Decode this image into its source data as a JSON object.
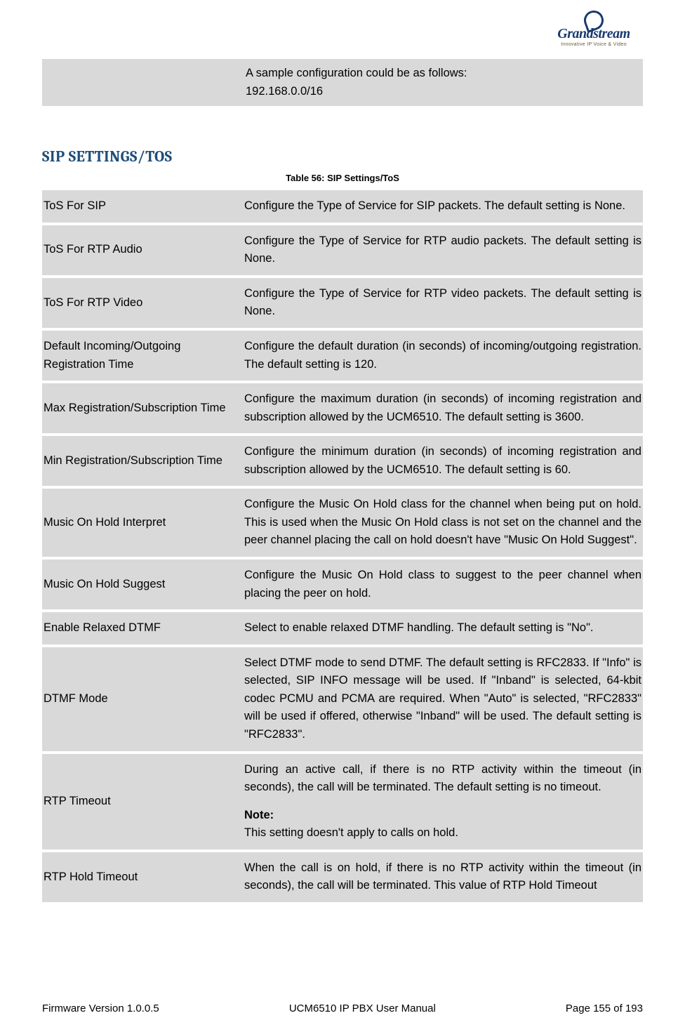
{
  "logo": {
    "brand": "Grandstream",
    "tagline": "Innovative IP Voice & Video"
  },
  "prelude": {
    "line1": "A sample configuration could be as follows:",
    "line2": "192.168.0.0/16"
  },
  "section_heading": "SIP SETTINGS/TOS",
  "table_caption": "Table 56: SIP Settings/ToS",
  "rows": [
    {
      "label": "ToS For SIP",
      "desc": "Configure the Type of Service for SIP packets. The default setting is None."
    },
    {
      "label": "ToS For RTP Audio",
      "desc": "Configure the Type of Service for RTP audio packets. The default setting is None."
    },
    {
      "label": "ToS For RTP Video",
      "desc": "Configure the Type of Service for RTP video packets. The default setting is None."
    },
    {
      "label": "Default Incoming/Outgoing Registration Time",
      "desc": "Configure the default duration (in seconds) of incoming/outgoing registration. The default setting is 120."
    },
    {
      "label": "Max Registration/Subscription Time",
      "desc": "Configure the maximum duration (in seconds) of incoming registration and subscription allowed by the UCM6510. The default setting is 3600."
    },
    {
      "label": "Min Registration/Subscription Time",
      "desc": "Configure the minimum duration (in seconds) of incoming registration and subscription allowed by the UCM6510. The default setting is 60."
    },
    {
      "label": "Music On Hold Interpret",
      "desc": "Configure the Music On Hold class for the channel when being put on hold. This is used when the Music On Hold class is not set on the channel and the peer channel placing the call on hold doesn't have \"Music On Hold Suggest\"."
    },
    {
      "label": "Music On Hold Suggest",
      "desc": "Configure the Music On Hold class to suggest to the peer channel when placing the peer on hold."
    },
    {
      "label": "Enable Relaxed DTMF",
      "desc": "Select to enable relaxed DTMF handling. The default setting is \"No\"."
    },
    {
      "label": "DTMF Mode",
      "desc": "Select DTMF mode to send DTMF. The default setting is RFC2833. If \"Info\" is selected, SIP INFO message will be used. If \"Inband\" is selected, 64-kbit codec PCMU and PCMA are required. When \"Auto\" is selected, \"RFC2833\" will be used if offered, otherwise \"Inband\" will be used. The default setting is \"RFC2833\"."
    }
  ],
  "rtp_timeout": {
    "label": "RTP Timeout",
    "desc_main": "During an active call, if there is no RTP activity within the timeout (in seconds), the call will be terminated. The default setting is no timeout.",
    "note_label": "Note:",
    "note_text": "This setting doesn't apply to calls on hold."
  },
  "rtp_hold": {
    "label": "RTP Hold Timeout",
    "desc": "When the call is on hold, if there is no RTP activity within the timeout (in seconds), the call will be terminated. This value of RTP Hold Timeout"
  },
  "footer": {
    "left": "Firmware Version 1.0.0.5",
    "center": "UCM6510 IP PBX User Manual",
    "right": "Page 155 of 193"
  },
  "colors": {
    "cell_bg": "#d9d9d9",
    "heading": "#1f4e79",
    "logo_blue": "#1a3a6e"
  }
}
